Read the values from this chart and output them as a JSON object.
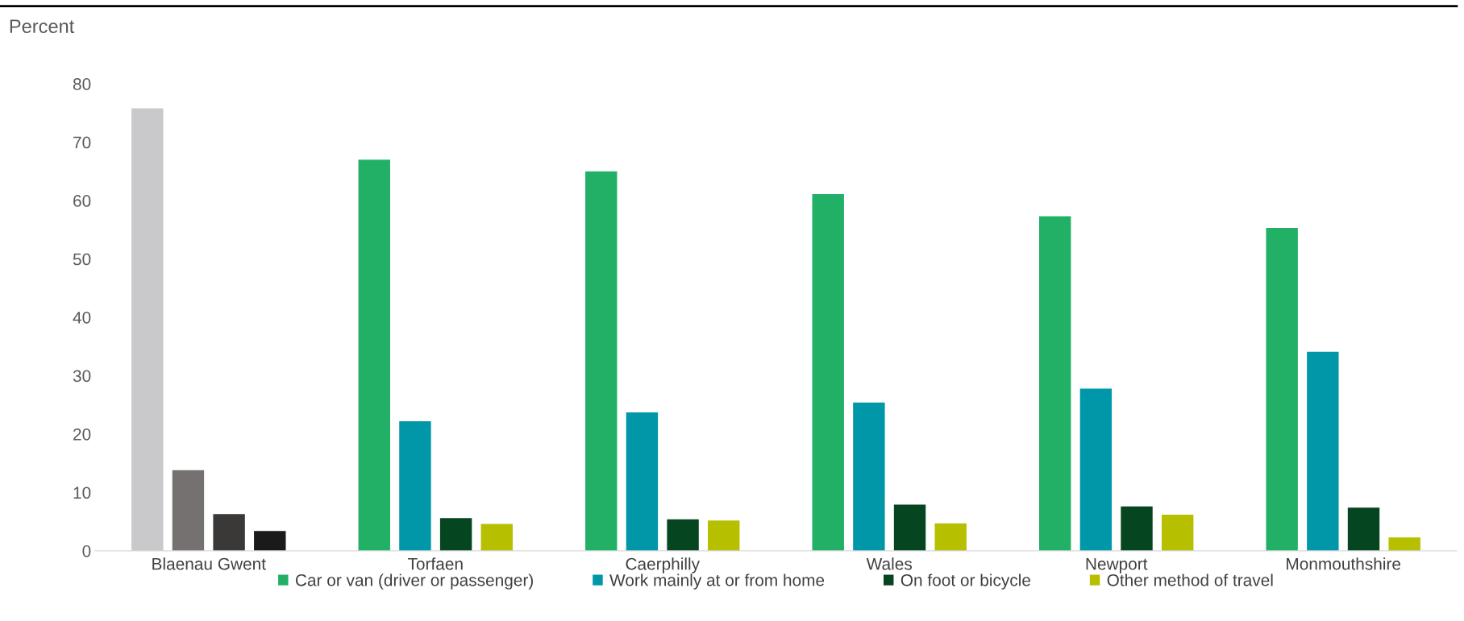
{
  "chart_data": {
    "type": "bar",
    "ylabel": "Percent",
    "categories": [
      "Blaenau Gwent",
      "Torfaen",
      "Caerphilly",
      "Wales",
      "Newport",
      "Monmouthshire"
    ],
    "series": [
      {
        "name": "Car or van (driver or passenger)",
        "color": "#22b067",
        "colors": [
          "#c9c8ca",
          "#22b067",
          "#22b067",
          "#22b067",
          "#22b067",
          "#22b067"
        ],
        "values": [
          75.8,
          67.0,
          65.0,
          61.1,
          57.3,
          55.3
        ]
      },
      {
        "name": "Work mainly at or from home",
        "color": "#0097a9",
        "colors": [
          "#767171",
          "#0097a9",
          "#0097a9",
          "#0097a9",
          "#0097a9",
          "#0097a9"
        ],
        "values": [
          13.8,
          22.2,
          23.7,
          25.4,
          27.8,
          34.1
        ]
      },
      {
        "name": "On foot or bicycle",
        "color": "#054520",
        "colors": [
          "#3b3838",
          "#054520",
          "#054520",
          "#054520",
          "#054520",
          "#054520"
        ],
        "values": [
          6.3,
          5.6,
          5.4,
          7.9,
          7.6,
          7.4
        ]
      },
      {
        "name": "Other method of travel",
        "color": "#b6c000",
        "colors": [
          "#1a1a1a",
          "#b6c000",
          "#b6c000",
          "#b6c000",
          "#b6c000",
          "#b6c000"
        ],
        "values": [
          3.4,
          4.6,
          5.2,
          4.7,
          6.2,
          2.3
        ]
      }
    ],
    "ylim": [
      0,
      80
    ],
    "yticks": [
      0,
      10,
      20,
      30,
      40,
      50,
      60,
      70,
      80
    ],
    "grid": false,
    "legend": "bottom"
  }
}
